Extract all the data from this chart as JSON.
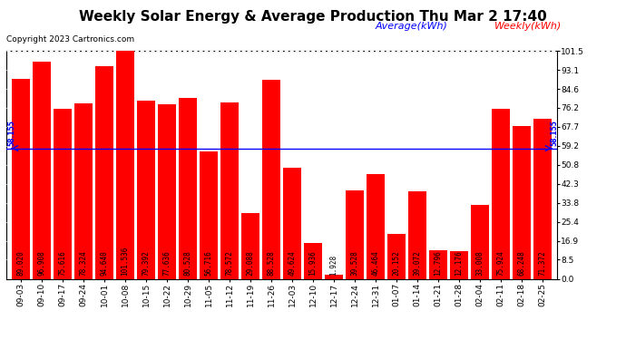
{
  "title": "Weekly Solar Energy & Average Production Thu Mar 2 17:40",
  "copyright": "Copyright 2023 Cartronics.com",
  "categories": [
    "09-03",
    "09-10",
    "09-17",
    "09-24",
    "10-01",
    "10-08",
    "10-15",
    "10-22",
    "10-29",
    "11-05",
    "11-12",
    "11-19",
    "11-26",
    "12-03",
    "12-10",
    "12-17",
    "12-24",
    "12-31",
    "01-07",
    "01-14",
    "01-21",
    "01-28",
    "02-04",
    "02-11",
    "02-18",
    "02-25"
  ],
  "values": [
    89.02,
    96.908,
    75.616,
    78.324,
    94.64,
    101.536,
    79.392,
    77.636,
    80.528,
    56.716,
    78.572,
    29.088,
    88.528,
    49.624,
    15.936,
    1.928,
    39.528,
    46.464,
    20.152,
    39.072,
    12.796,
    12.176,
    33.008,
    75.924,
    68.248,
    71.372
  ],
  "average": 58.155,
  "bar_color": "#ff0000",
  "average_color": "#0000ff",
  "background_color": "#ffffff",
  "plot_bg_color": "#ffffff",
  "grid_color": "#aaaaaa",
  "ylim": [
    0,
    101.5
  ],
  "yticks": [
    0.0,
    8.5,
    16.9,
    25.4,
    33.8,
    42.3,
    50.8,
    59.2,
    67.7,
    76.2,
    84.6,
    93.1,
    101.5
  ],
  "legend_average_label": "Average(kWh)",
  "legend_weekly_label": "Weekly(kWh)",
  "average_label": "58.155",
  "title_fontsize": 11,
  "copyright_fontsize": 6.5,
  "tick_fontsize": 6.5,
  "bar_label_fontsize": 5.5,
  "legend_fontsize": 8
}
